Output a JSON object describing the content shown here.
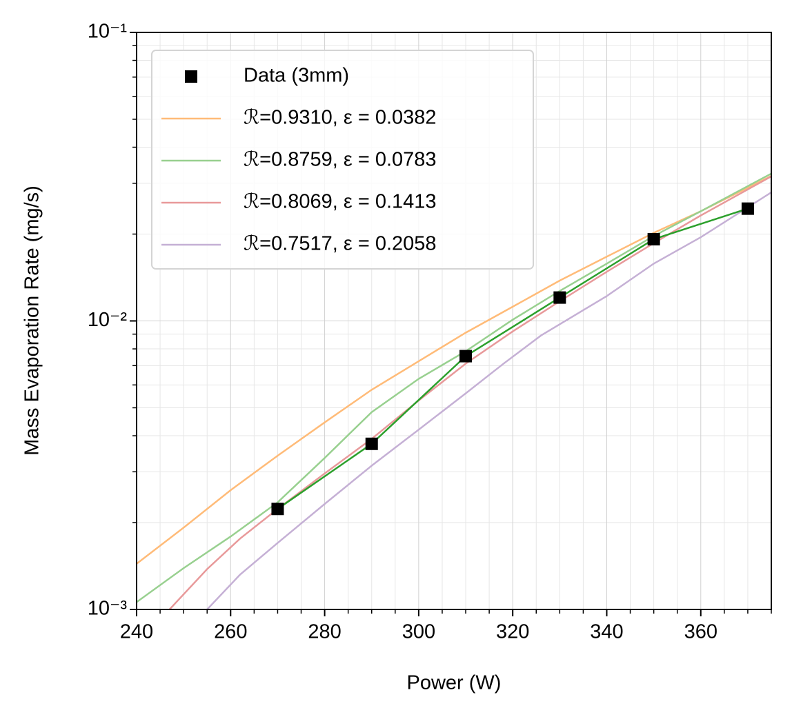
{
  "chart_data": {
    "type": "line",
    "xlabel": "Power (W)",
    "ylabel": "Mass Evaporation Rate (mg/s)",
    "xlim": [
      240,
      375
    ],
    "xticks": [
      240,
      260,
      280,
      300,
      320,
      340,
      360
    ],
    "xminor": [
      245,
      250,
      255,
      265,
      270,
      275,
      285,
      290,
      295,
      305,
      310,
      315,
      325,
      330,
      335,
      345,
      350,
      355,
      365,
      370,
      375
    ],
    "ylim": [
      0.001,
      0.1
    ],
    "yscale": "log",
    "yticks": [
      {
        "value": 0.001,
        "label": "10⁻³"
      },
      {
        "value": 0.01,
        "label": "10⁻²"
      },
      {
        "value": 0.1,
        "label": "10⁻¹"
      }
    ],
    "yminor": [
      0.002,
      0.003,
      0.004,
      0.005,
      0.006,
      0.007,
      0.008,
      0.009,
      0.02,
      0.03,
      0.04,
      0.05,
      0.06,
      0.07,
      0.08,
      0.09
    ],
    "grid": true,
    "legend": "upper left",
    "series": [
      {
        "name": "Data (3mm)",
        "color": "#000000",
        "line_color": "#2ca02c",
        "marker": "square",
        "x": [
          270,
          290,
          310,
          330,
          350,
          370
        ],
        "values": [
          0.00223,
          0.00375,
          0.00755,
          0.01205,
          0.0192,
          0.0245
        ]
      },
      {
        "name": "ℛ=0.9310, ε = 0.0382",
        "color": "#ffbb78",
        "x": [
          240,
          250,
          260,
          270,
          280,
          290,
          300,
          310,
          320,
          330,
          340,
          350,
          360,
          375
        ],
        "values": [
          0.00144,
          0.00192,
          0.00259,
          0.00341,
          0.00445,
          0.00577,
          0.00725,
          0.0091,
          0.0112,
          0.0138,
          0.0167,
          0.0202,
          0.024,
          0.0318
        ]
      },
      {
        "name": "ℛ=0.8759, ε = 0.0783",
        "color": "#98d08f",
        "x": [
          240,
          250,
          260,
          270,
          280,
          290,
          300,
          310,
          320,
          330,
          340,
          350,
          360,
          375
        ],
        "values": [
          0.00106,
          0.00139,
          0.00179,
          0.00235,
          0.00335,
          0.00483,
          0.0063,
          0.00785,
          0.0101,
          0.0127,
          0.0158,
          0.0197,
          0.024,
          0.0324
        ]
      },
      {
        "name": "ℛ=0.8069, ε = 0.1413",
        "color": "#e8999a",
        "x": [
          247,
          255,
          262,
          270,
          280,
          290,
          300,
          310,
          320,
          330,
          340,
          350,
          360,
          375
        ],
        "values": [
          0.001,
          0.00138,
          0.00176,
          0.00223,
          0.00296,
          0.0039,
          0.0053,
          0.00711,
          0.0092,
          0.0117,
          0.0148,
          0.0186,
          0.0232,
          0.0317
        ]
      },
      {
        "name": "ℛ=0.7517, ε = 0.2058",
        "color": "#c5b0d5",
        "x": [
          255,
          262,
          270,
          280,
          290,
          300,
          310,
          318,
          326,
          340,
          350,
          360,
          375
        ],
        "values": [
          0.001,
          0.00132,
          0.0017,
          0.00232,
          0.00315,
          0.0042,
          0.00561,
          0.0071,
          0.0089,
          0.0122,
          0.0158,
          0.0195,
          0.0279
        ]
      }
    ]
  }
}
